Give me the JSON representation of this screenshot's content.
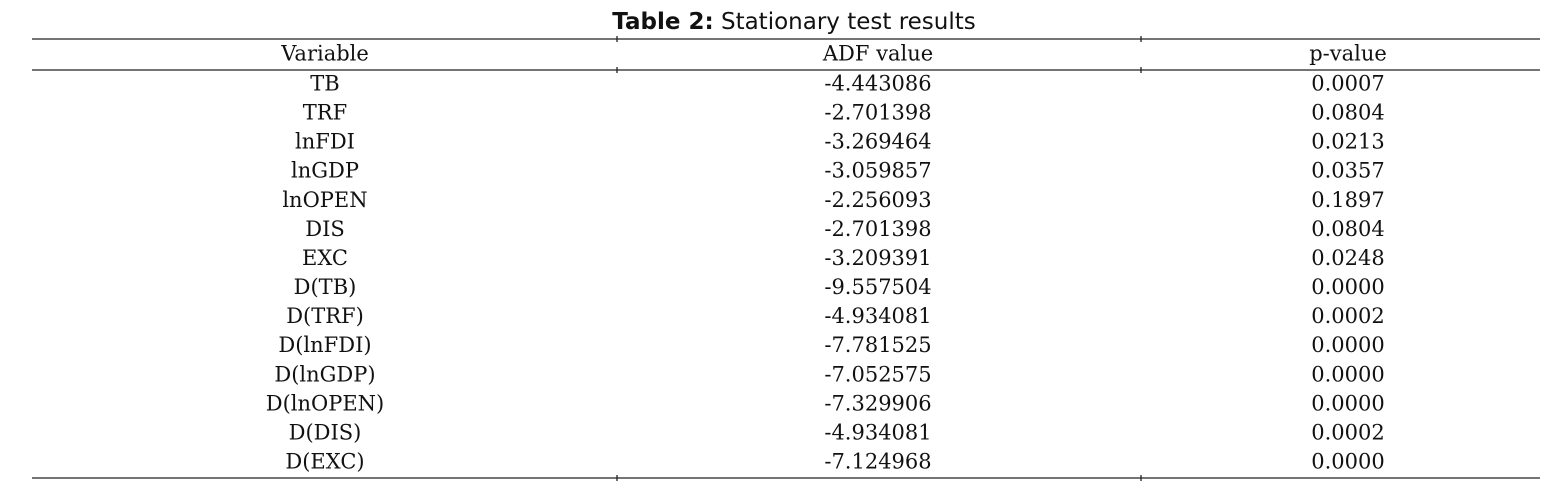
{
  "caption": {
    "label": "Table 2:",
    "text": "Stationary test results"
  },
  "table": {
    "header": [
      "Variable",
      "ADF value",
      "p-value"
    ],
    "rows": [
      [
        "TB",
        "-4.443086",
        "0.0007"
      ],
      [
        "TRF",
        "-2.701398",
        "0.0804"
      ],
      [
        "lnFDI",
        "-3.269464",
        "0.0213"
      ],
      [
        "lnGDP",
        "-3.059857",
        "0.0357"
      ],
      [
        "lnOPEN",
        "-2.256093",
        "0.1897"
      ],
      [
        "DIS",
        "-2.701398",
        "0.0804"
      ],
      [
        "EXC",
        "-3.209391",
        "0.0248"
      ],
      [
        "D(TB)",
        "-9.557504",
        "0.0000"
      ],
      [
        "D(TRF)",
        "-4.934081",
        "0.0002"
      ],
      [
        "D(lnFDI)",
        "-7.781525",
        "0.0000"
      ],
      [
        "D(lnGDP)",
        "-7.052575",
        "0.0000"
      ],
      [
        "D(lnOPEN)",
        "-7.329906",
        "0.0000"
      ],
      [
        "D(DIS)",
        "-4.934081",
        "0.0002"
      ],
      [
        "D(EXC)",
        "-7.124968",
        "0.0000"
      ]
    ]
  }
}
